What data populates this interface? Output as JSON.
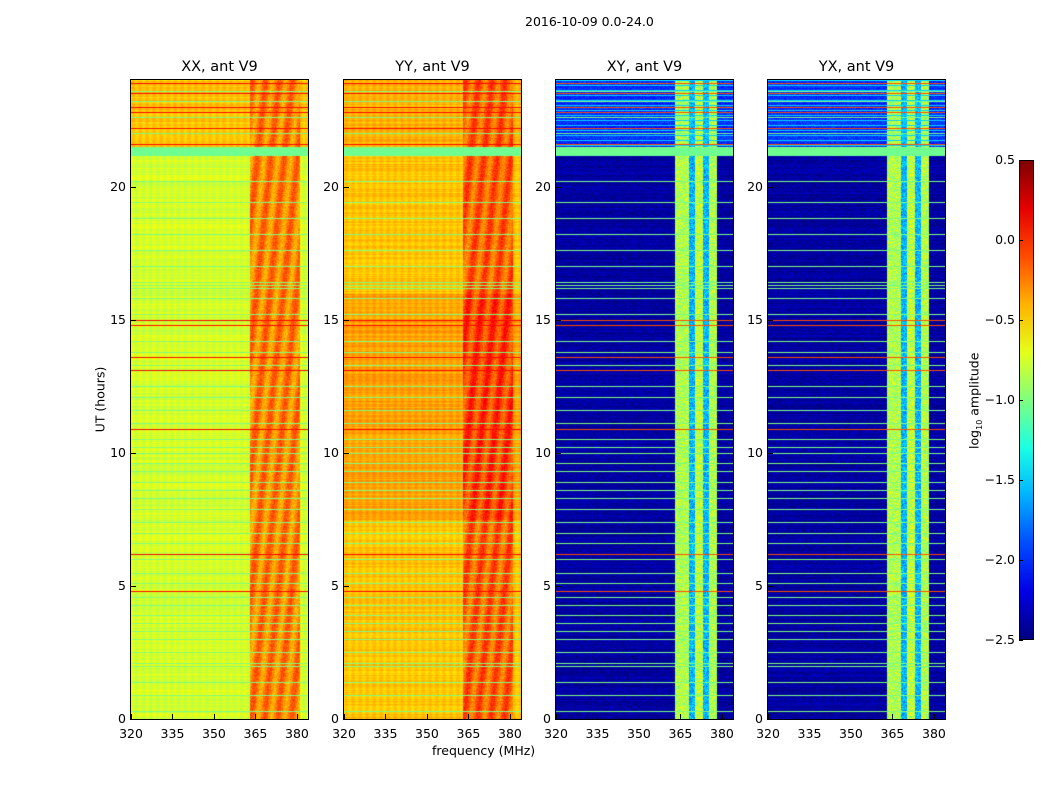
{
  "figure_title": "2016-10-09 0.0-24.0",
  "chart_data": {
    "type": "heatmap",
    "colormap": "jet",
    "xlabel": "frequency (MHz)",
    "ylabel": "UT (hours)",
    "xlim": [
      320,
      384
    ],
    "ylim": [
      0,
      24
    ],
    "xticks": [
      320,
      335,
      350,
      365,
      380
    ],
    "yticks": [
      0,
      5,
      10,
      15,
      20
    ],
    "panels": [
      {
        "title": "XX, ant V9",
        "background": -0.75,
        "band_range": [
          363,
          381
        ],
        "band_level": -0.25,
        "top_section_level": -0.45
      },
      {
        "title": "YY, ant V9",
        "background": -0.45,
        "band_range": [
          363,
          381
        ],
        "band_level": -0.15,
        "top_section_level": -0.4
      },
      {
        "title": "XY, ant V9",
        "background": -2.4,
        "band_columns": [
          [
            363,
            368,
            -0.85
          ],
          [
            368,
            370,
            -1.6
          ],
          [
            370,
            373,
            -0.8
          ],
          [
            373,
            375,
            -1.6
          ],
          [
            375,
            378,
            -0.85
          ]
        ],
        "top_section_level": -2.0
      },
      {
        "title": "YX, ant V9",
        "background": -2.4,
        "band_columns": [
          [
            363,
            368,
            -0.85
          ],
          [
            368,
            370,
            -1.6
          ],
          [
            370,
            373,
            -0.8
          ],
          [
            373,
            375,
            -1.6
          ],
          [
            375,
            378,
            -0.85
          ]
        ],
        "top_section_level": -2.0
      }
    ],
    "flagged_rows_ut": {
      "green": [
        0.3,
        0.9,
        1.4,
        2.0,
        2.1,
        2.5,
        3.0,
        3.3,
        3.6,
        3.9,
        4.3,
        4.6,
        5.1,
        5.5,
        6.0,
        6.6,
        7.0,
        7.4,
        7.9,
        8.3,
        8.6,
        8.9,
        9.3,
        9.6,
        10.0,
        10.2,
        10.5,
        11.1,
        11.6,
        12.1,
        12.5,
        13.3,
        13.8,
        14.2,
        15.2,
        15.8,
        16.2,
        16.3,
        16.4,
        17.0,
        17.6,
        18.2,
        18.8,
        19.4,
        20.2,
        21.3,
        21.4,
        21.5,
        22.0,
        22.6,
        23.2,
        23.6
      ],
      "red": [
        4.8,
        6.2,
        10.9,
        13.1,
        13.6,
        14.8,
        15.0,
        21.6,
        22.2,
        22.8,
        23.0,
        23.5,
        23.9
      ]
    },
    "colorbar": {
      "label": "log10 amplitude",
      "label_main": "log",
      "label_sub": "10",
      "label_rest": " amplitude",
      "range": [
        -2.5,
        0.5
      ],
      "ticks": [
        "0.5",
        "0.0",
        "−0.5",
        "−1.0",
        "−1.5",
        "−2.0",
        "−2.5"
      ],
      "tick_values": [
        0.5,
        0,
        -0.5,
        -1,
        -1.5,
        -2,
        -2.5
      ]
    }
  }
}
